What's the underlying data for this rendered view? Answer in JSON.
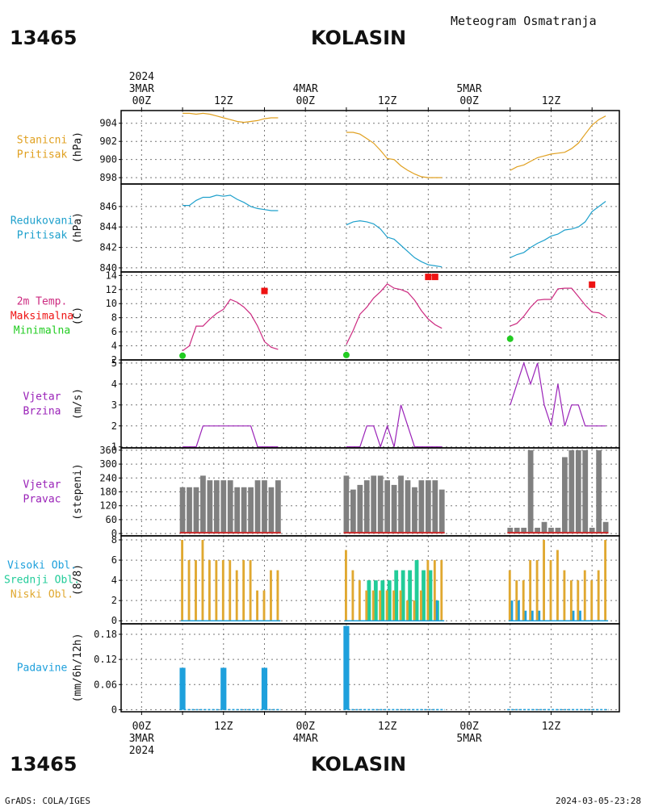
{
  "header": {
    "station_id": "13465",
    "station_name": "KOLASIN",
    "product_title": "Meteogram Osmatranja",
    "footer_left": "GrADS: COLA/IGES",
    "footer_right": "2024-03-05-23:28"
  },
  "colors": {
    "pressure": "#e0a020",
    "reduced_pressure": "#1ea0cc",
    "temperature": "#cc2a80",
    "tmax": "#ee1111",
    "tmin": "#22cc22",
    "wind": "#9a22b8",
    "bar_gray": "#808080",
    "bar_red": "#cc2a2a",
    "high_cloud": "#1ea0dc",
    "mid_cloud": "#22cc99",
    "low_cloud": "#e0a830",
    "precip": "#1ea0dc",
    "grid": "#777777"
  },
  "time_axis": {
    "top_labels": [
      {
        "hour": 0,
        "lines": [
          "2024",
          "3MAR",
          "00Z"
        ]
      },
      {
        "hour": 12,
        "lines": [
          "12Z"
        ]
      },
      {
        "hour": 24,
        "lines": [
          "4MAR",
          "00Z"
        ]
      },
      {
        "hour": 36,
        "lines": [
          "12Z"
        ]
      },
      {
        "hour": 48,
        "lines": [
          "5MAR",
          "00Z"
        ]
      },
      {
        "hour": 60,
        "lines": [
          "12Z"
        ]
      }
    ],
    "bottom_labels": [
      {
        "hour": 0,
        "lines": [
          "00Z",
          "3MAR",
          "2024"
        ]
      },
      {
        "hour": 12,
        "lines": [
          "12Z"
        ]
      },
      {
        "hour": 24,
        "lines": [
          "00Z",
          "4MAR"
        ]
      },
      {
        "hour": 36,
        "lines": [
          "12Z"
        ]
      },
      {
        "hour": 48,
        "lines": [
          "00Z",
          "5MAR"
        ]
      },
      {
        "hour": 60,
        "lines": [
          "12Z"
        ]
      }
    ],
    "range_hours": [
      -3,
      70
    ]
  },
  "chart_data": [
    {
      "type": "line",
      "panel": "station_pressure",
      "labels": [
        "Stanicni",
        "Pritisak"
      ],
      "ylabel": "(hPa)",
      "yticks": [
        898,
        900,
        902,
        904
      ],
      "ylim": [
        897.3,
        905.4
      ],
      "series": [
        {
          "color_key": "pressure",
          "segments": [
            {
              "x": [
                6,
                7,
                8,
                9,
                10,
                11,
                12,
                13,
                14,
                15,
                16,
                17,
                18,
                19,
                20
              ],
              "y": [
                905.1,
                905.1,
                905.0,
                905.1,
                905.0,
                904.8,
                904.6,
                904.4,
                904.2,
                904.1,
                904.2,
                904.3,
                904.5,
                904.6,
                904.6
              ]
            },
            {
              "x": [
                30,
                31,
                32,
                33,
                34,
                35,
                36,
                37,
                38,
                39,
                40,
                41,
                42,
                43,
                44
              ],
              "y": [
                903.0,
                903.0,
                902.8,
                902.3,
                901.8,
                901.0,
                900.1,
                900.0,
                899.3,
                898.8,
                898.4,
                898.1,
                898.0,
                898.0,
                898.0
              ]
            },
            {
              "x": [
                54,
                55,
                56,
                57,
                58,
                59,
                60,
                61,
                62,
                63,
                64,
                65,
                66,
                67,
                68
              ],
              "y": [
                898.8,
                899.2,
                899.4,
                899.8,
                900.2,
                900.4,
                900.6,
                900.7,
                900.8,
                901.2,
                901.8,
                902.8,
                903.8,
                904.4,
                904.8
              ]
            }
          ]
        }
      ]
    },
    {
      "type": "line",
      "panel": "reduced_pressure",
      "labels": [
        "Redukovani",
        "Pritisak"
      ],
      "ylabel": "(hPa)",
      "yticks": [
        840,
        842,
        844,
        846
      ],
      "ylim": [
        839.6,
        848.2
      ],
      "series": [
        {
          "color_key": "reduced_pressure",
          "segments": [
            {
              "x": [
                6,
                7,
                8,
                9,
                10,
                11,
                12,
                13,
                14,
                15,
                16,
                17,
                18,
                19,
                20
              ],
              "y": [
                846.1,
                846.1,
                846.6,
                846.9,
                846.9,
                847.1,
                847.0,
                847.1,
                846.7,
                846.4,
                846.0,
                845.8,
                845.7,
                845.6,
                845.6
              ]
            },
            {
              "x": [
                30,
                31,
                32,
                33,
                34,
                35,
                36,
                37,
                38,
                39,
                40,
                41,
                42,
                43,
                44
              ],
              "y": [
                844.2,
                844.5,
                844.6,
                844.5,
                844.3,
                843.8,
                843.0,
                842.8,
                842.2,
                841.6,
                841.0,
                840.6,
                840.3,
                840.2,
                840.1
              ]
            },
            {
              "x": [
                54,
                55,
                56,
                57,
                58,
                59,
                60,
                61,
                62,
                63,
                64,
                65,
                66,
                67,
                68
              ],
              "y": [
                841.0,
                841.3,
                841.5,
                842.0,
                842.4,
                842.7,
                843.1,
                843.3,
                843.7,
                843.8,
                844.0,
                844.5,
                845.5,
                846.0,
                846.5
              ]
            }
          ]
        }
      ]
    },
    {
      "type": "line",
      "panel": "temperature",
      "labels": [
        "2m Temp.",
        "Maksimalna",
        "Minimalna"
      ],
      "ylabel": "(C)",
      "yticks": [
        2,
        4,
        6,
        8,
        10,
        12,
        14
      ],
      "ylim": [
        2,
        14.5
      ],
      "series": [
        {
          "color_key": "temperature",
          "segments": [
            {
              "x": [
                6,
                7,
                8,
                9,
                10,
                11,
                12,
                13,
                14,
                15,
                16,
                17,
                18,
                19,
                20
              ],
              "y": [
                3.3,
                4.0,
                6.8,
                6.8,
                7.8,
                8.6,
                9.2,
                10.6,
                10.2,
                9.5,
                8.5,
                6.8,
                4.6,
                3.8,
                3.5
              ]
            },
            {
              "x": [
                30,
                31,
                32,
                33,
                34,
                35,
                36,
                37,
                38,
                39,
                40,
                41,
                42,
                43,
                44
              ],
              "y": [
                4.2,
                6.2,
                8.5,
                9.5,
                10.8,
                11.7,
                12.8,
                12.2,
                12.0,
                11.6,
                10.5,
                9.0,
                7.8,
                7.0,
                6.5
              ]
            },
            {
              "x": [
                54,
                55,
                56,
                57,
                58,
                59,
                60,
                61,
                62,
                63,
                64,
                65,
                66,
                67,
                68
              ],
              "y": [
                6.8,
                7.2,
                8.2,
                9.5,
                10.5,
                10.6,
                10.6,
                12.1,
                12.2,
                12.2,
                11.0,
                9.8,
                8.8,
                8.7,
                8.1
              ]
            }
          ]
        }
      ],
      "max_markers": [
        {
          "x": 18,
          "y": 11.8
        },
        {
          "x": 42,
          "y": 13.8
        },
        {
          "x": 43,
          "y": 13.8
        },
        {
          "x": 66,
          "y": 12.7
        }
      ],
      "min_markers": [
        {
          "x": 6,
          "y": 2.6
        },
        {
          "x": 30,
          "y": 2.7
        },
        {
          "x": 54,
          "y": 5.0
        }
      ]
    },
    {
      "type": "line",
      "panel": "wind_speed",
      "labels": [
        "Vjetar",
        "Brzina"
      ],
      "ylabel": "(m/s)",
      "yticks": [
        1,
        2,
        3,
        4,
        5
      ],
      "ylim": [
        0.95,
        5.15
      ],
      "series": [
        {
          "color_key": "wind",
          "segments": [
            {
              "x": [
                6,
                7,
                8,
                9,
                10,
                11,
                12,
                13,
                14,
                15,
                16,
                17,
                18,
                19,
                20
              ],
              "y": [
                1,
                1,
                1,
                2,
                2,
                2,
                2,
                2,
                2,
                2,
                2,
                1,
                1,
                1,
                1
              ]
            },
            {
              "x": [
                30,
                31,
                32,
                33,
                34,
                35,
                36,
                37,
                38,
                39,
                40,
                41,
                42,
                43,
                44
              ],
              "y": [
                1,
                1,
                1,
                2,
                2,
                1,
                2,
                1,
                3,
                2,
                1,
                1,
                1,
                1,
                1
              ]
            },
            {
              "x": [
                54,
                55,
                56,
                57,
                58,
                59,
                60,
                61,
                62,
                63,
                64,
                65,
                66,
                67,
                68
              ],
              "y": [
                3,
                4,
                5,
                4,
                5,
                3,
                2,
                4,
                2,
                3,
                3,
                2,
                2,
                2,
                2
              ]
            }
          ]
        }
      ]
    },
    {
      "type": "bar",
      "panel": "wind_direction",
      "labels": [
        "Vjetar",
        "Pravac"
      ],
      "ylabel": "(stepeni)",
      "yticks": [
        0,
        60,
        120,
        180,
        240,
        300,
        360
      ],
      "ylim": [
        -10,
        370
      ],
      "color_key": "bar_gray",
      "x": [
        6,
        7,
        8,
        9,
        10,
        11,
        12,
        13,
        14,
        15,
        16,
        17,
        18,
        19,
        20,
        30,
        31,
        32,
        33,
        34,
        35,
        36,
        37,
        38,
        39,
        40,
        41,
        42,
        43,
        44,
        54,
        55,
        56,
        57,
        58,
        59,
        60,
        61,
        62,
        63,
        64,
        65,
        66,
        67,
        68
      ],
      "values": [
        200,
        200,
        200,
        250,
        230,
        230,
        230,
        230,
        200,
        200,
        200,
        230,
        230,
        200,
        230,
        250,
        190,
        210,
        230,
        250,
        250,
        230,
        210,
        250,
        230,
        200,
        230,
        230,
        230,
        190,
        25,
        25,
        25,
        360,
        25,
        50,
        25,
        25,
        330,
        360,
        360,
        360,
        25,
        360,
        50
      ]
    },
    {
      "type": "bar",
      "panel": "cloud_cover",
      "labels": [
        "Visoki Obl.",
        "Srednji Obl.",
        "Niski Obl."
      ],
      "ylabel": "(8/8)",
      "yticks": [
        0,
        2,
        4,
        6,
        8
      ],
      "ylim": [
        -0.3,
        8.4
      ],
      "x": [
        6,
        7,
        8,
        9,
        10,
        11,
        12,
        13,
        14,
        15,
        16,
        17,
        18,
        19,
        20,
        30,
        31,
        32,
        33,
        34,
        35,
        36,
        37,
        38,
        39,
        40,
        41,
        42,
        43,
        44,
        54,
        55,
        56,
        57,
        58,
        59,
        60,
        61,
        62,
        63,
        64,
        65,
        66,
        67,
        68
      ],
      "series": [
        {
          "name": "Niski Obl.",
          "color_key": "low_cloud",
          "values": [
            8,
            6,
            6,
            8,
            6,
            6,
            6,
            6,
            5,
            6,
            6,
            3,
            3,
            5,
            5,
            7,
            5,
            4,
            3,
            3,
            3,
            3,
            3,
            3,
            2,
            2,
            3,
            6,
            6,
            6,
            5,
            4,
            4,
            6,
            6,
            8,
            6,
            7,
            5,
            4,
            4,
            5,
            4,
            5,
            8
          ]
        },
        {
          "name": "Srednji Obl.",
          "color_key": "mid_cloud",
          "values": [
            0,
            0,
            0,
            0,
            0,
            0,
            0,
            0,
            0,
            0,
            0,
            0,
            0,
            0,
            0,
            0,
            0,
            0,
            4,
            4,
            4,
            4,
            5,
            5,
            5,
            6,
            5,
            5,
            2,
            0,
            0,
            0,
            0,
            0,
            0,
            0,
            0,
            0,
            0,
            0,
            0,
            0,
            0,
            0,
            0
          ]
        },
        {
          "name": "Visoki Obl.",
          "color_key": "high_cloud",
          "values": [
            0,
            0,
            0,
            0,
            0,
            0,
            0,
            0,
            0,
            0,
            0,
            0,
            0,
            0,
            0,
            0,
            0,
            0,
            0,
            0,
            0,
            0,
            0,
            0,
            0,
            0,
            0,
            0,
            2,
            0,
            2,
            2,
            1,
            1,
            1,
            0,
            0,
            0,
            0,
            1,
            1,
            0,
            0,
            0,
            0
          ]
        }
      ]
    },
    {
      "type": "bar",
      "panel": "precipitation",
      "labels": [
        "Padavine"
      ],
      "ylabel": "(mm/6h/12h)",
      "yticks": [
        0,
        0.06,
        0.12,
        0.18
      ],
      "ytick_labels": [
        "0",
        "0.06",
        "0.12",
        "0.18"
      ],
      "ylim": [
        -0.005,
        0.205
      ],
      "color_key": "precip",
      "x": [
        6,
        7,
        8,
        9,
        10,
        11,
        12,
        13,
        14,
        15,
        16,
        17,
        18,
        19,
        20,
        30,
        31,
        32,
        33,
        34,
        35,
        36,
        37,
        38,
        39,
        40,
        41,
        42,
        43,
        44,
        54,
        55,
        56,
        57,
        58,
        59,
        60,
        61,
        62,
        63,
        64,
        65,
        66,
        67,
        68
      ],
      "values": [
        0.1,
        0,
        0,
        0,
        0,
        0,
        0.1,
        0,
        0,
        0,
        0,
        0,
        0.1,
        0,
        0,
        0.2,
        0,
        0,
        0,
        0,
        0,
        0,
        0,
        0,
        0,
        0,
        0,
        0,
        0,
        0,
        0,
        0,
        0,
        0,
        0,
        0,
        0,
        0,
        0,
        0,
        0,
        0,
        0,
        0,
        0
      ]
    }
  ]
}
